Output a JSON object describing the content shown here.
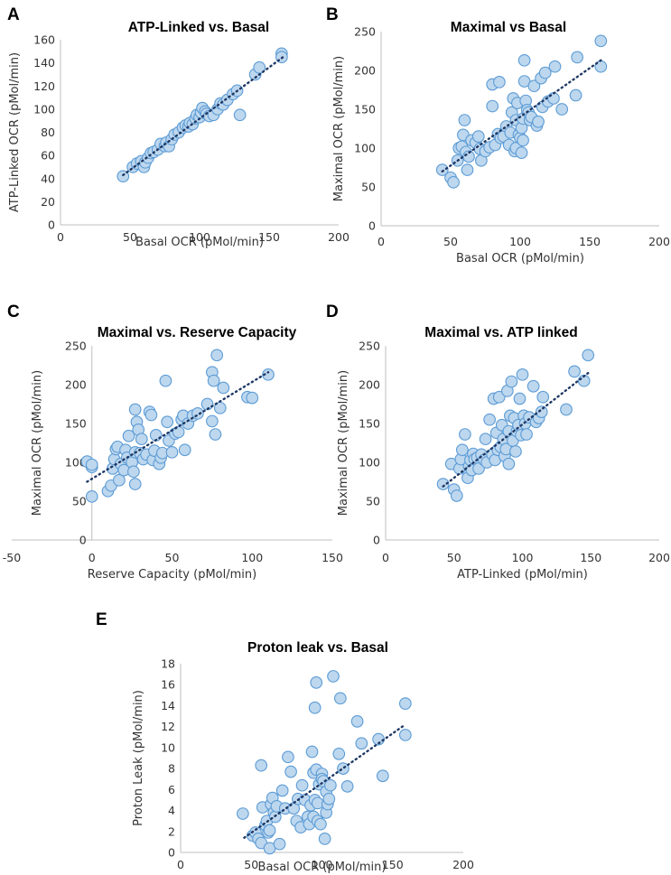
{
  "chart_data": [
    {
      "type": "scatter",
      "panel": "A",
      "title": "ATP-Linked vs. Basal",
      "xlabel": "Basal OCR (pMol/min)",
      "ylabel": "ATP-Linked OCR (pMol/min)",
      "xlim": [
        0,
        200
      ],
      "ylim": [
        0,
        160
      ],
      "xticks": [
        0,
        50,
        100,
        150,
        200
      ],
      "yticks": [
        0,
        20,
        40,
        60,
        80,
        100,
        120,
        140,
        160
      ],
      "trendline": [
        [
          45,
          43
        ],
        [
          160,
          145
        ]
      ],
      "points": [
        [
          45,
          42
        ],
        [
          52,
          50
        ],
        [
          55,
          53
        ],
        [
          58,
          55
        ],
        [
          60,
          50
        ],
        [
          61,
          54
        ],
        [
          63,
          58
        ],
        [
          65,
          62
        ],
        [
          67,
          63
        ],
        [
          70,
          65
        ],
        [
          72,
          70
        ],
        [
          75,
          68
        ],
        [
          76,
          71
        ],
        [
          78,
          68
        ],
        [
          80,
          74
        ],
        [
          82,
          78
        ],
        [
          85,
          80
        ],
        [
          88,
          84
        ],
        [
          90,
          86
        ],
        [
          92,
          85
        ],
        [
          93,
          88
        ],
        [
          95,
          87
        ],
        [
          97,
          92
        ],
        [
          98,
          95
        ],
        [
          100,
          93
        ],
        [
          101,
          97
        ],
        [
          102,
          101
        ],
        [
          104,
          98
        ],
        [
          105,
          96
        ],
        [
          107,
          94
        ],
        [
          110,
          95
        ],
        [
          113,
          100
        ],
        [
          115,
          105
        ],
        [
          117,
          104
        ],
        [
          120,
          108
        ],
        [
          124,
          113
        ],
        [
          127,
          116
        ],
        [
          129,
          95
        ],
        [
          140,
          130
        ],
        [
          143,
          136
        ],
        [
          159,
          148
        ],
        [
          159,
          145
        ]
      ]
    },
    {
      "type": "scatter",
      "panel": "B",
      "title": "Maximal vs Basal",
      "xlabel": "Basal OCR (pMol/min)",
      "ylabel": "Maximal OCR (pMol/min)",
      "xlim": [
        0,
        200
      ],
      "ylim": [
        0,
        250
      ],
      "xticks": [
        0,
        50,
        100,
        150,
        200
      ],
      "yticks": [
        0,
        50,
        100,
        150,
        200,
        250
      ],
      "trendline": [
        [
          44,
          70
        ],
        [
          158,
          213
        ]
      ],
      "points": [
        [
          44,
          72
        ],
        [
          50,
          62
        ],
        [
          52,
          56
        ],
        [
          55,
          84
        ],
        [
          56,
          100
        ],
        [
          58,
          102
        ],
        [
          59,
          117
        ],
        [
          60,
          136
        ],
        [
          61,
          95
        ],
        [
          62,
          72
        ],
        [
          63,
          89
        ],
        [
          65,
          110
        ],
        [
          68,
          107
        ],
        [
          70,
          115
        ],
        [
          71,
          99
        ],
        [
          72,
          84
        ],
        [
          75,
          96
        ],
        [
          78,
          101
        ],
        [
          80,
          154
        ],
        [
          80,
          182
        ],
        [
          82,
          104
        ],
        [
          84,
          118
        ],
        [
          85,
          185
        ],
        [
          86,
          113
        ],
        [
          88,
          115
        ],
        [
          90,
          128
        ],
        [
          92,
          104
        ],
        [
          93,
          120
        ],
        [
          94,
          146
        ],
        [
          95,
          164
        ],
        [
          96,
          96
        ],
        [
          97,
          100
        ],
        [
          97,
          136
        ],
        [
          98,
          158
        ],
        [
          99,
          117
        ],
        [
          100,
          113
        ],
        [
          101,
          126
        ],
        [
          101,
          94
        ],
        [
          102,
          110
        ],
        [
          102,
          138
        ],
        [
          103,
          186
        ],
        [
          103,
          213
        ],
        [
          104,
          161
        ],
        [
          105,
          149
        ],
        [
          106,
          146
        ],
        [
          107,
          136
        ],
        [
          108,
          140
        ],
        [
          110,
          180
        ],
        [
          112,
          129
        ],
        [
          113,
          134
        ],
        [
          115,
          190
        ],
        [
          116,
          153
        ],
        [
          118,
          197
        ],
        [
          120,
          160
        ],
        [
          124,
          164
        ],
        [
          125,
          205
        ],
        [
          130,
          150
        ],
        [
          140,
          168
        ],
        [
          141,
          217
        ],
        [
          158,
          205
        ],
        [
          158,
          238
        ]
      ]
    },
    {
      "type": "scatter",
      "panel": "C",
      "title": "Maximal vs. Reserve Capacity",
      "xlabel": "Reserve Capacity (pMol/min)",
      "ylabel": "Maximal OCR (pMol/min)",
      "xlim": [
        -50,
        150
      ],
      "ylim": [
        0,
        250
      ],
      "xticks": [
        -50,
        0,
        50,
        100,
        150
      ],
      "yticks": [
        0,
        50,
        100,
        150,
        200,
        250
      ],
      "trendline": [
        [
          -3,
          75
        ],
        [
          110,
          216
        ]
      ],
      "points": [
        [
          -3,
          101
        ],
        [
          0,
          94
        ],
        [
          0,
          97
        ],
        [
          0,
          56
        ],
        [
          10,
          63
        ],
        [
          12,
          70
        ],
        [
          13,
          92
        ],
        [
          14,
          104
        ],
        [
          15,
          117
        ],
        [
          16,
          120
        ],
        [
          17,
          77
        ],
        [
          18,
          98
        ],
        [
          20,
          90
        ],
        [
          21,
          116
        ],
        [
          22,
          106
        ],
        [
          23,
          134
        ],
        [
          25,
          100
        ],
        [
          26,
          88
        ],
        [
          27,
          72
        ],
        [
          27,
          113
        ],
        [
          28,
          152
        ],
        [
          27,
          168
        ],
        [
          29,
          142
        ],
        [
          30,
          112
        ],
        [
          31,
          130
        ],
        [
          32,
          104
        ],
        [
          34,
          110
        ],
        [
          36,
          165
        ],
        [
          37,
          161
        ],
        [
          38,
          103
        ],
        [
          39,
          115
        ],
        [
          40,
          135
        ],
        [
          42,
          98
        ],
        [
          43,
          106
        ],
        [
          44,
          112
        ],
        [
          46,
          205
        ],
        [
          47,
          152
        ],
        [
          48,
          128
        ],
        [
          50,
          113
        ],
        [
          52,
          137
        ],
        [
          54,
          139
        ],
        [
          56,
          155
        ],
        [
          57,
          160
        ],
        [
          58,
          116
        ],
        [
          60,
          150
        ],
        [
          63,
          160
        ],
        [
          66,
          163
        ],
        [
          72,
          175
        ],
        [
          75,
          153
        ],
        [
          75,
          216
        ],
        [
          76,
          205
        ],
        [
          77,
          136
        ],
        [
          78,
          238
        ],
        [
          80,
          170
        ],
        [
          82,
          196
        ],
        [
          97,
          184
        ],
        [
          100,
          183
        ],
        [
          110,
          213
        ]
      ]
    },
    {
      "type": "scatter",
      "panel": "D",
      "title": "Maximal vs. ATP linked",
      "xlabel": "ATP-Linked (pMol/min)",
      "ylabel": "Maximal OCR (pMol/min)",
      "xlim": [
        0,
        200
      ],
      "ylim": [
        0,
        250
      ],
      "xticks": [
        0,
        50,
        100,
        150,
        200
      ],
      "yticks": [
        0,
        50,
        100,
        150,
        200,
        250
      ],
      "trendline": [
        [
          42,
          69
        ],
        [
          148,
          215
        ]
      ],
      "points": [
        [
          42,
          72
        ],
        [
          48,
          98
        ],
        [
          50,
          65
        ],
        [
          52,
          57
        ],
        [
          54,
          92
        ],
        [
          55,
          104
        ],
        [
          56,
          116
        ],
        [
          58,
          136
        ],
        [
          60,
          80
        ],
        [
          61,
          95
        ],
        [
          62,
          103
        ],
        [
          63,
          90
        ],
        [
          64,
          111
        ],
        [
          65,
          104
        ],
        [
          67,
          106
        ],
        [
          68,
          92
        ],
        [
          70,
          110
        ],
        [
          72,
          103
        ],
        [
          73,
          130
        ],
        [
          74,
          100
        ],
        [
          76,
          155
        ],
        [
          78,
          110
        ],
        [
          79,
          182
        ],
        [
          80,
          103
        ],
        [
          81,
          138
        ],
        [
          82,
          116
        ],
        [
          83,
          184
        ],
        [
          84,
          120
        ],
        [
          85,
          148
        ],
        [
          86,
          130
        ],
        [
          87,
          108
        ],
        [
          88,
          117
        ],
        [
          89,
          192
        ],
        [
          90,
          98
        ],
        [
          90,
          140
        ],
        [
          91,
          160
        ],
        [
          92,
          204
        ],
        [
          93,
          128
        ],
        [
          94,
          157
        ],
        [
          95,
          114
        ],
        [
          96,
          140
        ],
        [
          97,
          148
        ],
        [
          98,
          182
        ],
        [
          99,
          135
        ],
        [
          100,
          213
        ],
        [
          101,
          160
        ],
        [
          102,
          150
        ],
        [
          103,
          136
        ],
        [
          105,
          158
        ],
        [
          108,
          198
        ],
        [
          110,
          152
        ],
        [
          112,
          157
        ],
        [
          114,
          165
        ],
        [
          115,
          184
        ],
        [
          132,
          168
        ],
        [
          138,
          217
        ],
        [
          145,
          205
        ],
        [
          148,
          238
        ]
      ]
    },
    {
      "type": "scatter",
      "panel": "E",
      "title": "Proton leak vs. Basal",
      "xlabel": "Basal OCR (pMol/min)",
      "ylabel": "Proton Leak (pMol/min)",
      "xlim": [
        0,
        200
      ],
      "ylim": [
        0,
        18
      ],
      "xticks": [
        0,
        50,
        100,
        150,
        200
      ],
      "yticks": [
        0,
        2,
        4,
        6,
        8,
        10,
        12,
        14,
        16,
        18
      ],
      "trendline": [
        [
          45,
          1.4
        ],
        [
          159,
          12.2
        ]
      ],
      "points": [
        [
          44,
          3.7
        ],
        [
          51,
          1.6
        ],
        [
          53,
          1.9
        ],
        [
          55,
          1.3
        ],
        [
          57,
          0.9
        ],
        [
          57,
          8.3
        ],
        [
          58,
          4.3
        ],
        [
          60,
          2.6
        ],
        [
          61,
          3.0
        ],
        [
          62,
          1.9
        ],
        [
          63,
          2.1
        ],
        [
          63,
          0.4
        ],
        [
          64,
          4.6
        ],
        [
          65,
          5.2
        ],
        [
          66,
          3.8
        ],
        [
          67,
          3.4
        ],
        [
          68,
          4.4
        ],
        [
          70,
          0.8
        ],
        [
          72,
          5.9
        ],
        [
          74,
          4.2
        ],
        [
          76,
          9.1
        ],
        [
          78,
          7.7
        ],
        [
          80,
          4.2
        ],
        [
          82,
          3.0
        ],
        [
          83,
          5.1
        ],
        [
          85,
          2.4
        ],
        [
          86,
          6.4
        ],
        [
          88,
          5.0
        ],
        [
          90,
          3.4
        ],
        [
          91,
          2.7
        ],
        [
          92,
          4.5
        ],
        [
          93,
          9.6
        ],
        [
          94,
          3.4
        ],
        [
          94,
          7.6
        ],
        [
          95,
          5.0
        ],
        [
          95,
          13.8
        ],
        [
          96,
          16.2
        ],
        [
          96,
          7.9
        ],
        [
          97,
          4.7
        ],
        [
          97,
          3.0
        ],
        [
          98,
          6.5
        ],
        [
          99,
          2.7
        ],
        [
          100,
          7.5
        ],
        [
          100,
          7.0
        ],
        [
          101,
          6.8
        ],
        [
          102,
          1.3
        ],
        [
          103,
          3.8
        ],
        [
          103,
          5.8
        ],
        [
          104,
          4.6
        ],
        [
          105,
          5.1
        ],
        [
          106,
          6.4
        ],
        [
          108,
          16.8
        ],
        [
          112,
          9.4
        ],
        [
          113,
          14.7
        ],
        [
          115,
          8.0
        ],
        [
          118,
          6.3
        ],
        [
          125,
          12.5
        ],
        [
          128,
          10.4
        ],
        [
          140,
          10.8
        ],
        [
          143,
          7.3
        ],
        [
          159,
          11.2
        ],
        [
          159,
          14.2
        ]
      ]
    }
  ]
}
